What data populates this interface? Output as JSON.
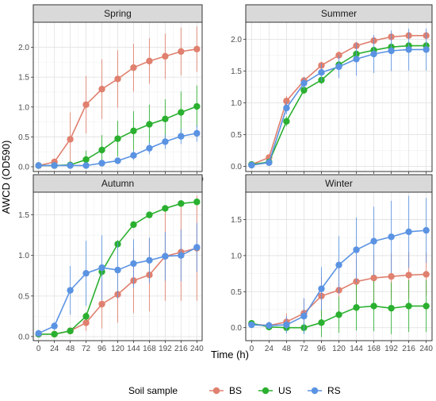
{
  "chart_data": {
    "type": "line",
    "x_label": "Time (h)",
    "y_label": "AWCD (OD590)",
    "x_ticks": [
      0,
      24,
      48,
      72,
      96,
      120,
      144,
      168,
      192,
      216,
      240
    ],
    "x_range": [
      -8,
      248
    ],
    "legend": {
      "title": "Soil sample",
      "position": "bottom",
      "entries": [
        {
          "key": "BS",
          "label": "BS",
          "color": "#e0806f"
        },
        {
          "key": "US",
          "label": "US",
          "color": "#2ab02f"
        },
        {
          "key": "RS",
          "label": "RS",
          "color": "#5b93e3"
        }
      ]
    },
    "grid": true,
    "panels": [
      {
        "title": "Spring",
        "y_range": [
          -0.08,
          2.42
        ],
        "y_ticks": [
          0.0,
          0.5,
          1.0,
          1.5,
          2.0
        ],
        "series": [
          {
            "key": "BS",
            "y": [
              0.02,
              0.08,
              0.46,
              1.04,
              1.3,
              1.47,
              1.66,
              1.77,
              1.85,
              1.93,
              1.97
            ],
            "err": [
              0.02,
              0.06,
              0.45,
              0.48,
              0.5,
              0.48,
              0.4,
              0.38,
              0.38,
              0.4,
              0.38
            ]
          },
          {
            "key": "US",
            "y": [
              0.02,
              0.02,
              0.03,
              0.12,
              0.28,
              0.47,
              0.6,
              0.71,
              0.8,
              0.91,
              1.01
            ],
            "err": [
              0.02,
              0.02,
              0.03,
              0.15,
              0.25,
              0.3,
              0.33,
              0.33,
              0.33,
              0.35,
              0.35
            ]
          },
          {
            "key": "RS",
            "y": [
              0.02,
              0.02,
              0.02,
              0.02,
              0.06,
              0.1,
              0.19,
              0.31,
              0.42,
              0.51,
              0.56
            ],
            "err": [
              0.01,
              0.01,
              0.01,
              0.02,
              0.03,
              0.05,
              0.08,
              0.1,
              0.12,
              0.13,
              0.14
            ]
          }
        ]
      },
      {
        "title": "Summer",
        "y_range": [
          -0.08,
          2.27
        ],
        "y_ticks": [
          0.0,
          0.5,
          1.0,
          1.5,
          2.0
        ],
        "series": [
          {
            "key": "BS",
            "y": [
              0.03,
              0.14,
              1.03,
              1.35,
              1.59,
              1.75,
              1.9,
              1.98,
              2.04,
              2.06,
              2.06
            ],
            "err": [
              0.02,
              0.05,
              0.08,
              0.06,
              0.06,
              0.06,
              0.06,
              0.06,
              0.06,
              0.06,
              0.06
            ]
          },
          {
            "key": "US",
            "y": [
              0.03,
              0.07,
              0.71,
              1.2,
              1.36,
              1.6,
              1.77,
              1.83,
              1.88,
              1.9,
              1.9
            ],
            "err": [
              0.02,
              0.04,
              0.08,
              0.06,
              0.06,
              0.06,
              0.06,
              0.06,
              0.06,
              0.06,
              0.06
            ]
          },
          {
            "key": "RS",
            "y": [
              0.02,
              0.06,
              0.92,
              1.31,
              1.48,
              1.57,
              1.69,
              1.77,
              1.82,
              1.84,
              1.84
            ],
            "err": [
              0.02,
              0.04,
              0.1,
              0.1,
              0.14,
              0.18,
              0.26,
              0.3,
              0.32,
              0.33,
              0.33
            ]
          }
        ]
      },
      {
        "title": "Autumn",
        "y_range": [
          -0.05,
          1.78
        ],
        "y_ticks": [
          0.0,
          0.5,
          1.0,
          1.5
        ],
        "series": [
          {
            "key": "BS",
            "y": [
              0.03,
              0.03,
              0.07,
              0.17,
              0.4,
              0.52,
              0.69,
              0.76,
              0.99,
              1.04,
              1.09
            ],
            "err": [
              0.02,
              0.02,
              0.04,
              0.1,
              0.3,
              0.35,
              0.4,
              0.45,
              0.55,
              0.6,
              0.65
            ]
          },
          {
            "key": "US",
            "y": [
              0.03,
              0.03,
              0.07,
              0.25,
              0.8,
              1.14,
              1.38,
              1.5,
              1.58,
              1.64,
              1.66
            ],
            "err": [
              0.02,
              0.02,
              0.03,
              0.05,
              0.06,
              0.05,
              0.04,
              0.04,
              0.04,
              0.04,
              0.04
            ]
          },
          {
            "key": "RS",
            "y": [
              0.04,
              0.13,
              0.57,
              0.78,
              0.85,
              0.82,
              0.9,
              0.94,
              0.99,
              1.0,
              1.1
            ],
            "err": [
              0.02,
              0.05,
              0.3,
              0.4,
              0.4,
              0.35,
              0.3,
              0.28,
              0.3,
              0.32,
              0.3
            ]
          }
        ]
      },
      {
        "title": "Winter",
        "y_range": [
          -0.18,
          1.88
        ],
        "y_ticks": [
          0.0,
          0.5,
          1.0,
          1.5
        ],
        "series": [
          {
            "key": "BS",
            "y": [
              0.05,
              0.03,
              0.08,
              0.2,
              0.44,
              0.52,
              0.64,
              0.69,
              0.71,
              0.73,
              0.74
            ],
            "err": [
              0.03,
              0.05,
              0.12,
              0.2,
              0.28,
              0.3,
              0.32,
              0.32,
              0.32,
              0.32,
              0.3
            ]
          },
          {
            "key": "US",
            "y": [
              0.06,
              0.01,
              0.0,
              0.0,
              0.07,
              0.18,
              0.28,
              0.3,
              0.27,
              0.3,
              0.3
            ],
            "err": [
              0.04,
              0.04,
              0.05,
              0.08,
              0.2,
              0.25,
              0.32,
              0.35,
              0.36,
              0.36,
              0.36
            ]
          },
          {
            "key": "RS",
            "y": [
              0.04,
              0.03,
              0.04,
              0.16,
              0.54,
              0.87,
              1.08,
              1.2,
              1.26,
              1.33,
              1.35
            ],
            "err": [
              0.03,
              0.05,
              0.12,
              0.25,
              0.3,
              0.4,
              0.45,
              0.48,
              0.5,
              0.5,
              0.45
            ]
          }
        ]
      }
    ]
  }
}
